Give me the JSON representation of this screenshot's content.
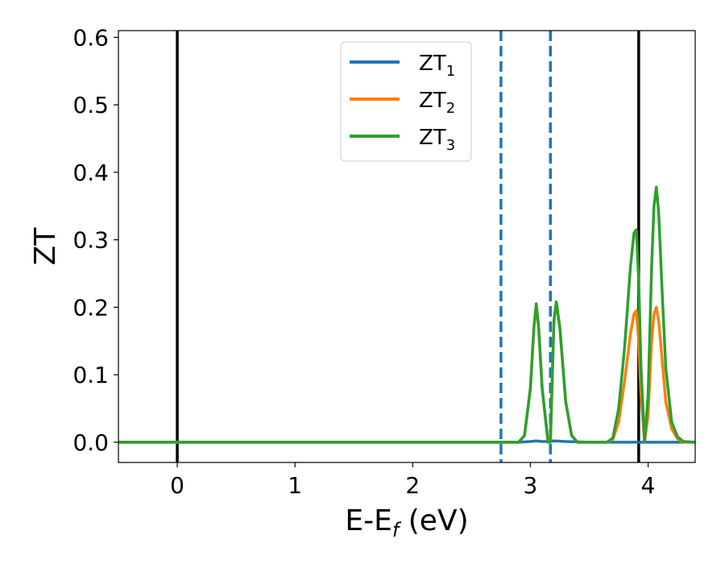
{
  "chart_data": {
    "type": "line",
    "xlabel": "E-E",
    "xlabel_sub": "f",
    "xlabel_unit": " (eV)",
    "ylabel": "ZT",
    "xlim": [
      -0.5,
      4.4
    ],
    "ylim": [
      -0.03,
      0.61
    ],
    "xticks": [
      0,
      1,
      2,
      3,
      4
    ],
    "yticks": [
      0.0,
      0.1,
      0.2,
      0.3,
      0.4,
      0.5,
      0.6
    ],
    "xtick_labels": [
      "0",
      "1",
      "2",
      "3",
      "4"
    ],
    "ytick_labels": [
      "0.0",
      "0.1",
      "0.2",
      "0.3",
      "0.4",
      "0.5",
      "0.6"
    ],
    "grid": false,
    "legend_position": "top-center",
    "vlines": [
      {
        "x": 0.0,
        "style": "solid",
        "color": "#000000"
      },
      {
        "x": 3.92,
        "style": "solid",
        "color": "#000000"
      },
      {
        "x": 2.75,
        "style": "dashed",
        "color": "#1f77b4"
      },
      {
        "x": 3.17,
        "style": "dashed",
        "color": "#1f77b4"
      }
    ],
    "series": [
      {
        "name": "ZT",
        "sub": "1",
        "color": "#1f77b4",
        "x": [
          -0.5,
          2.7,
          2.9,
          3.0,
          3.05,
          3.1,
          3.15,
          3.2,
          3.3,
          3.5,
          3.7,
          4.4
        ],
        "y": [
          0.0,
          0.0,
          0.0,
          0.001,
          0.002,
          0.001,
          0.001,
          0.002,
          0.001,
          0.0,
          0.0,
          0.0
        ]
      },
      {
        "name": "ZT",
        "sub": "2",
        "color": "#ff7f0e",
        "x": [
          -0.5,
          2.75,
          2.9,
          2.95,
          3.0,
          3.03,
          3.05,
          3.07,
          3.1,
          3.15,
          3.17,
          3.2,
          3.22,
          3.25,
          3.3,
          3.35,
          3.4,
          3.5,
          3.65,
          3.7,
          3.75,
          3.8,
          3.85,
          3.88,
          3.9,
          3.92,
          3.94,
          3.97,
          4.0,
          4.03,
          4.05,
          4.07,
          4.09,
          4.12,
          4.15,
          4.2,
          4.25,
          4.3,
          4.4
        ],
        "y": [
          0.0,
          0.0,
          0.0,
          0.01,
          0.08,
          0.17,
          0.205,
          0.17,
          0.08,
          0.0,
          0.0,
          0.18,
          0.208,
          0.17,
          0.06,
          0.01,
          0.0,
          0.0,
          0.0,
          0.004,
          0.03,
          0.09,
          0.16,
          0.19,
          0.195,
          0.15,
          0.07,
          0.0,
          0.04,
          0.15,
          0.19,
          0.2,
          0.18,
          0.12,
          0.06,
          0.02,
          0.005,
          0.0,
          0.0
        ]
      },
      {
        "name": "ZT",
        "sub": "3",
        "color": "#2ca02c",
        "x": [
          -0.5,
          2.75,
          2.9,
          2.95,
          3.0,
          3.03,
          3.05,
          3.07,
          3.1,
          3.15,
          3.17,
          3.2,
          3.22,
          3.25,
          3.3,
          3.35,
          3.4,
          3.5,
          3.65,
          3.7,
          3.75,
          3.8,
          3.85,
          3.88,
          3.9,
          3.92,
          3.94,
          3.97,
          4.0,
          4.03,
          4.05,
          4.07,
          4.09,
          4.12,
          4.15,
          4.2,
          4.25,
          4.3,
          4.4
        ],
        "y": [
          0.0,
          0.0,
          0.0,
          0.01,
          0.08,
          0.17,
          0.205,
          0.17,
          0.08,
          0.0,
          0.0,
          0.18,
          0.208,
          0.17,
          0.06,
          0.01,
          0.0,
          0.0,
          0.0,
          0.006,
          0.05,
          0.14,
          0.26,
          0.31,
          0.315,
          0.24,
          0.11,
          0.0,
          0.07,
          0.26,
          0.35,
          0.378,
          0.34,
          0.22,
          0.11,
          0.03,
          0.008,
          0.001,
          0.0
        ]
      }
    ]
  }
}
